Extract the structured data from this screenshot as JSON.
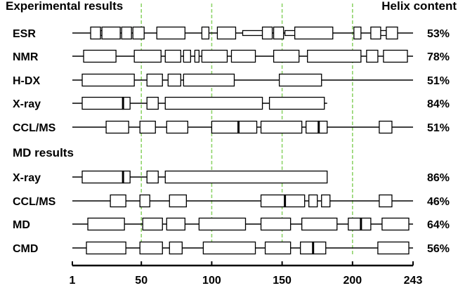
{
  "chart_data": {
    "type": "diagram",
    "header_left": "Experimental results",
    "header_right": "Helix content",
    "section2_title": "MD results",
    "x_axis": {
      "min": 1,
      "max": 243,
      "ticks": [
        1,
        50,
        100,
        150,
        200,
        243
      ],
      "tick_labels": [
        "1",
        "50",
        "100",
        "150",
        "200",
        "243"
      ]
    },
    "guide_lines": [
      50,
      100,
      150,
      200
    ],
    "guide_line_color": "#8fd46a",
    "rows": [
      {
        "label": "ESR",
        "helix_content": "53%",
        "line": [
          1,
          243
        ],
        "helices": [
          [
            14,
            21
          ],
          [
            22,
            35
          ],
          [
            36,
            43
          ],
          [
            44,
            52
          ],
          [
            61,
            81
          ],
          [
            93,
            98
          ],
          [
            104,
            117
          ],
          [
            136,
            143
          ],
          [
            144,
            151
          ],
          [
            159,
            186
          ],
          [
            201,
            206
          ],
          [
            213,
            220
          ],
          [
            224,
            232
          ]
        ],
        "narrow": [
          [
            21,
            23
          ],
          [
            122,
            136
          ],
          [
            152,
            159
          ],
          [
            220,
            224
          ]
        ],
        "markers": []
      },
      {
        "label": "NMR",
        "helix_content": "78%",
        "line": [
          1,
          243
        ],
        "helices": [
          [
            9,
            32
          ],
          [
            45,
            64
          ],
          [
            67,
            78
          ],
          [
            80,
            85
          ],
          [
            88,
            91
          ],
          [
            93,
            111
          ],
          [
            114,
            131
          ],
          [
            144,
            162
          ],
          [
            168,
            206
          ],
          [
            210,
            218
          ],
          [
            222,
            239
          ]
        ],
        "narrow": [],
        "markers": []
      },
      {
        "label": "H-DX",
        "helix_content": "51%",
        "line": [
          1,
          243
        ],
        "helices": [
          [
            8,
            45
          ],
          [
            54,
            65
          ],
          [
            69,
            78
          ],
          [
            80,
            116
          ],
          [
            148,
            178
          ]
        ],
        "narrow": [],
        "markers": []
      },
      {
        "label": "X-ray",
        "helix_content": "84%",
        "line": [
          1,
          182
        ],
        "helices": [
          [
            8,
            37
          ],
          [
            37,
            42
          ],
          [
            54,
            62
          ],
          [
            67,
            136
          ],
          [
            141,
            180
          ]
        ],
        "narrow": [],
        "markers": [
          37
        ]
      },
      {
        "label": "CCL/MS",
        "helix_content": "51%",
        "line": [
          1,
          243
        ],
        "helices": [
          [
            25,
            41
          ],
          [
            49,
            60
          ],
          [
            68,
            83
          ],
          [
            100,
            119
          ],
          [
            119,
            132
          ],
          [
            135,
            164
          ],
          [
            167,
            176
          ],
          [
            176,
            182
          ],
          [
            219,
            228
          ]
        ],
        "narrow": [],
        "markers": [
          119,
          176
        ]
      },
      {
        "label": "X-ray",
        "helix_content": "86%",
        "line": [
          1,
          182
        ],
        "helices": [
          [
            8,
            37
          ],
          [
            37,
            42
          ],
          [
            54,
            62
          ],
          [
            67,
            182
          ]
        ],
        "narrow": [],
        "markers": [
          37
        ],
        "section": "MD"
      },
      {
        "label": "CCL/MS",
        "helix_content": "46%",
        "line": [
          1,
          243
        ],
        "helices": [
          [
            28,
            39
          ],
          [
            49,
            56
          ],
          [
            70,
            82
          ],
          [
            135,
            152
          ],
          [
            152,
            166
          ],
          [
            169,
            175
          ],
          [
            178,
            184
          ],
          [
            219,
            228
          ]
        ],
        "narrow": [],
        "markers": [
          152
        ]
      },
      {
        "label": "MD",
        "helix_content": "64%",
        "line": [
          1,
          243
        ],
        "helices": [
          [
            12,
            38
          ],
          [
            51,
            65
          ],
          [
            68,
            81
          ],
          [
            91,
            124
          ],
          [
            135,
            156
          ],
          [
            164,
            189
          ],
          [
            197,
            206
          ],
          [
            206,
            213
          ],
          [
            221,
            240
          ]
        ],
        "narrow": [],
        "markers": [
          206
        ]
      },
      {
        "label": "CMD",
        "helix_content": "56%",
        "line": [
          1,
          243
        ],
        "helices": [
          [
            11,
            39
          ],
          [
            49,
            65
          ],
          [
            70,
            79
          ],
          [
            94,
            131
          ],
          [
            138,
            156
          ],
          [
            163,
            172
          ],
          [
            172,
            181
          ],
          [
            218,
            240
          ]
        ],
        "narrow": [],
        "markers": [
          172
        ]
      }
    ]
  }
}
